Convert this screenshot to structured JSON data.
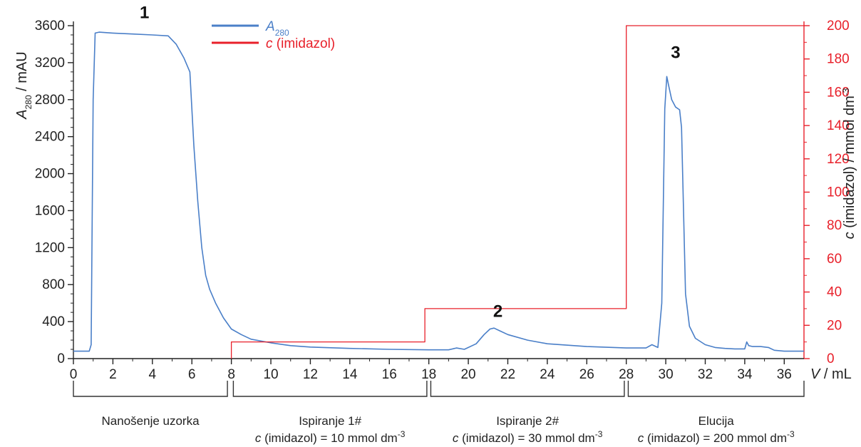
{
  "chart_data": {
    "type": "line",
    "x_axis": {
      "label_var": "V",
      "label_unit": " / mL",
      "range": [
        0,
        37
      ],
      "ticks": [
        0,
        2,
        4,
        6,
        8,
        10,
        12,
        14,
        16,
        18,
        20,
        22,
        24,
        26,
        28,
        30,
        32,
        34,
        36
      ],
      "tick_labels": [
        "0",
        "2",
        "4",
        "6",
        "8",
        "10",
        "12",
        "14",
        "16",
        "18",
        "20",
        "22",
        "24",
        "26",
        "28",
        "30",
        "32",
        "34",
        "36"
      ]
    },
    "y_left": {
      "label_var": "A",
      "label_sub": "280",
      "label_unit": " / mAU",
      "range": [
        0,
        3600
      ],
      "ticks": [
        0,
        400,
        800,
        1200,
        1600,
        2000,
        2400,
        2800,
        3200,
        3600
      ],
      "tick_labels": [
        "0",
        "400",
        "800",
        "1200",
        "1600",
        "2000",
        "2400",
        "2800",
        "3200",
        "3600"
      ],
      "color": "#222222"
    },
    "y_right": {
      "label_var": "c",
      "label_mid": " (imidazol) / mmol dm",
      "label_sup": "-3",
      "range": [
        0,
        200
      ],
      "ticks": [
        0,
        20,
        40,
        60,
        80,
        100,
        120,
        140,
        160,
        180,
        200
      ],
      "tick_labels": [
        "0",
        "20",
        "40",
        "60",
        "80",
        "100",
        "120",
        "140",
        "160",
        "180",
        "200"
      ],
      "color": "#e8202a"
    },
    "series": [
      {
        "name_var": "A",
        "name_sub": "280",
        "color": "#4a7fc8",
        "axis": "left",
        "x": [
          0,
          0.8,
          0.9,
          1.0,
          1.1,
          1.3,
          2,
          3,
          4,
          4.8,
          5.2,
          5.6,
          5.9,
          6.1,
          6.3,
          6.5,
          6.7,
          6.9,
          7.2,
          7.6,
          8.0,
          8.5,
          9,
          10,
          11,
          12,
          14,
          16,
          18,
          19,
          19.4,
          19.8,
          20.4,
          20.8,
          21.1,
          21.3,
          21.6,
          22,
          23,
          24,
          26,
          28,
          29,
          29.3,
          29.6,
          29.8,
          29.95,
          30.05,
          30.15,
          30.3,
          30.5,
          30.7,
          30.8,
          30.9,
          31.0,
          31.2,
          31.5,
          32,
          32.5,
          33,
          33.5,
          34,
          34.1,
          34.2,
          34.4,
          34.8,
          35.2,
          35.5,
          36,
          37
        ],
        "y": [
          80,
          80,
          150,
          2800,
          3520,
          3530,
          3520,
          3510,
          3500,
          3490,
          3400,
          3250,
          3100,
          2300,
          1700,
          1200,
          900,
          750,
          600,
          440,
          320,
          260,
          210,
          170,
          140,
          125,
          110,
          100,
          95,
          95,
          115,
          100,
          160,
          260,
          320,
          330,
          300,
          260,
          200,
          160,
          130,
          115,
          115,
          150,
          120,
          600,
          2700,
          3050,
          2950,
          2800,
          2720,
          2690,
          2500,
          1600,
          700,
          350,
          220,
          150,
          120,
          110,
          105,
          105,
          180,
          140,
          130,
          130,
          120,
          90,
          80,
          80
        ]
      },
      {
        "name_var": "c",
        "name_rest": " (imidazol)",
        "color": "#e8202a",
        "axis": "right",
        "x": [
          8,
          8,
          17.8,
          17.8,
          28,
          28,
          37
        ],
        "y": [
          0,
          10,
          10,
          30,
          30,
          200,
          200
        ]
      }
    ],
    "annotations": [
      {
        "text": "1",
        "x": 3.6,
        "y": 3680
      },
      {
        "text": "2",
        "x": 21.5,
        "y": 450
      },
      {
        "text": "3",
        "x": 30.5,
        "y": 3250
      }
    ],
    "phases": [
      {
        "label": "Nanošenje uzorka",
        "x_start": 0,
        "x_end": 7.8
      },
      {
        "label": "Ispiranje 1#",
        "cond_var": "c",
        "cond_text": " (imidazol) = 10 mmol dm",
        "cond_sup": "-3",
        "x_start": 8.1,
        "x_end": 17.9
      },
      {
        "label": "Ispiranje 2#",
        "cond_var": "c",
        "cond_text": " (imidazol) = 30 mmol dm",
        "cond_sup": "-3",
        "x_start": 18.1,
        "x_end": 27.9
      },
      {
        "label": "Elucija",
        "cond_var": "c",
        "cond_text": " (imidazol) = 200 mmol dm",
        "cond_sup": "-3",
        "x_start": 28.1,
        "x_end": 37
      }
    ],
    "legend_position": "top-center",
    "grid": false
  }
}
